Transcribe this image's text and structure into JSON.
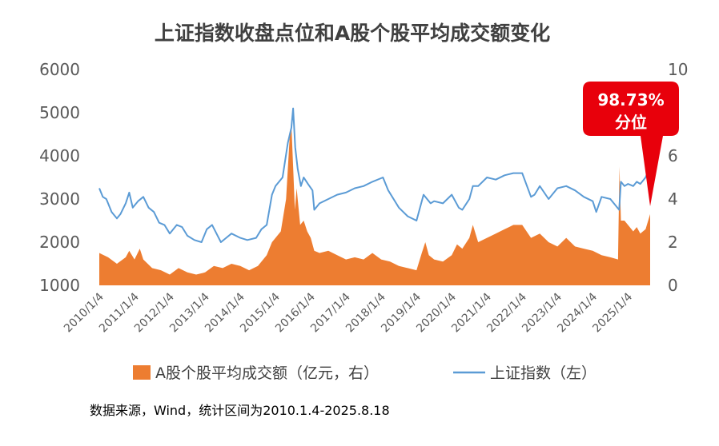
{
  "chart_data": {
    "type": "line",
    "title": "上证指数收盘点位和A股个股平均成交额变化",
    "source": "数据来源，Wind，统计区间为2010.1.4-2025.8.18",
    "left_axis": {
      "ticks": [
        "1000",
        "2000",
        "3000",
        "4000",
        "5000",
        "6000"
      ],
      "ylim": [
        1000,
        6000
      ]
    },
    "right_axis": {
      "ticks": [
        "0",
        "2",
        "4",
        "6",
        "8",
        "10"
      ],
      "ylim": [
        0,
        10
      ]
    },
    "x_ticks": [
      "2010/1/4",
      "2011/1/4",
      "2012/1/4",
      "2013/1/4",
      "2014/1/4",
      "2015/1/4",
      "2016/1/4",
      "2017/1/4",
      "2018/1/4",
      "2019/1/4",
      "2020/1/4",
      "2021/1/4",
      "2022/1/4",
      "2023/1/4",
      "2024/1/4",
      "2025/1/4"
    ],
    "x_range": [
      2010.0,
      2025.63
    ],
    "legend_position": "bottom",
    "series": [
      {
        "name": "A股个股平均成交额（亿元，右）",
        "type": "area",
        "axis": "right",
        "color": "#ED7D31",
        "x": [
          2010.0,
          2010.25,
          2010.5,
          2010.75,
          2010.85,
          2011.0,
          2011.15,
          2011.25,
          2011.5,
          2011.75,
          2012.0,
          2012.25,
          2012.5,
          2012.75,
          2013.0,
          2013.25,
          2013.5,
          2013.75,
          2014.0,
          2014.25,
          2014.5,
          2014.75,
          2014.9,
          2015.0,
          2015.15,
          2015.3,
          2015.4,
          2015.45,
          2015.5,
          2015.55,
          2015.6,
          2015.7,
          2015.8,
          2015.9,
          2016.0,
          2016.1,
          2016.25,
          2016.5,
          2016.75,
          2017.0,
          2017.25,
          2017.5,
          2017.75,
          2018.0,
          2018.25,
          2018.5,
          2018.75,
          2019.0,
          2019.15,
          2019.25,
          2019.35,
          2019.5,
          2019.75,
          2020.0,
          2020.15,
          2020.3,
          2020.5,
          2020.6,
          2020.75,
          2021.0,
          2021.25,
          2021.5,
          2021.75,
          2022.0,
          2022.25,
          2022.5,
          2022.75,
          2023.0,
          2023.25,
          2023.5,
          2023.75,
          2024.0,
          2024.25,
          2024.5,
          2024.72,
          2024.76,
          2024.8,
          2024.9,
          2025.0,
          2025.15,
          2025.25,
          2025.35,
          2025.5,
          2025.63
        ],
        "values": [
          1.5,
          1.3,
          1.0,
          1.3,
          1.6,
          1.2,
          1.7,
          1.2,
          0.8,
          0.7,
          0.5,
          0.8,
          0.6,
          0.5,
          0.6,
          0.9,
          0.8,
          1.0,
          0.9,
          0.7,
          0.9,
          1.4,
          2.0,
          2.2,
          2.5,
          4.0,
          6.8,
          7.5,
          5.5,
          3.5,
          4.5,
          2.8,
          3.0,
          2.5,
          2.2,
          1.6,
          1.5,
          1.6,
          1.4,
          1.2,
          1.3,
          1.2,
          1.5,
          1.2,
          1.1,
          0.9,
          0.8,
          0.7,
          1.5,
          2.0,
          1.4,
          1.2,
          1.1,
          1.4,
          1.9,
          1.7,
          2.2,
          2.8,
          2.0,
          2.2,
          2.4,
          2.6,
          2.8,
          2.8,
          2.2,
          2.4,
          2.0,
          1.8,
          2.2,
          1.8,
          1.7,
          1.6,
          1.4,
          1.3,
          1.2,
          5.5,
          3.0,
          3.0,
          2.8,
          2.5,
          2.7,
          2.4,
          2.6,
          3.3
        ]
      },
      {
        "name": "上证指数（左）",
        "type": "line",
        "axis": "left",
        "color": "#5B9BD5",
        "x": [
          2010.0,
          2010.1,
          2010.2,
          2010.35,
          2010.5,
          2010.6,
          2010.75,
          2010.85,
          2010.95,
          2011.1,
          2011.25,
          2011.4,
          2011.55,
          2011.7,
          2011.85,
          2012.0,
          2012.2,
          2012.35,
          2012.5,
          2012.7,
          2012.9,
          2013.05,
          2013.2,
          2013.45,
          2013.6,
          2013.75,
          2014.0,
          2014.2,
          2014.45,
          2014.6,
          2014.75,
          2014.9,
          2015.0,
          2015.2,
          2015.35,
          2015.45,
          2015.5,
          2015.56,
          2015.63,
          2015.72,
          2015.8,
          2015.92,
          2016.05,
          2016.1,
          2016.25,
          2016.5,
          2016.75,
          2017.0,
          2017.25,
          2017.5,
          2017.75,
          2018.05,
          2018.2,
          2018.5,
          2018.75,
          2019.0,
          2019.2,
          2019.4,
          2019.5,
          2019.75,
          2020.0,
          2020.2,
          2020.3,
          2020.5,
          2020.6,
          2020.75,
          2021.0,
          2021.25,
          2021.5,
          2021.75,
          2022.0,
          2022.25,
          2022.35,
          2022.5,
          2022.75,
          2023.0,
          2023.25,
          2023.5,
          2023.75,
          2024.0,
          2024.1,
          2024.25,
          2024.5,
          2024.65,
          2024.75,
          2024.8,
          2024.9,
          2025.0,
          2025.15,
          2025.25,
          2025.35,
          2025.5,
          2025.63
        ],
        "values": [
          3250,
          3050,
          3000,
          2700,
          2550,
          2650,
          2900,
          3150,
          2800,
          2950,
          3050,
          2800,
          2700,
          2450,
          2400,
          2200,
          2400,
          2350,
          2150,
          2050,
          2000,
          2300,
          2400,
          2000,
          2100,
          2200,
          2100,
          2050,
          2100,
          2300,
          2400,
          3100,
          3300,
          3500,
          4300,
          4650,
          5100,
          4200,
          3700,
          3300,
          3500,
          3350,
          3200,
          2750,
          2900,
          3000,
          3100,
          3150,
          3250,
          3300,
          3400,
          3500,
          3200,
          2800,
          2600,
          2500,
          3100,
          2900,
          2950,
          2900,
          3100,
          2800,
          2750,
          3000,
          3300,
          3300,
          3500,
          3450,
          3550,
          3600,
          3600,
          3050,
          3100,
          3300,
          3000,
          3250,
          3300,
          3200,
          3050,
          2950,
          2700,
          3050,
          3000,
          2850,
          2750,
          3400,
          3300,
          3350,
          3300,
          3400,
          3350,
          3500,
          3750
        ]
      }
    ],
    "callout": {
      "line1": "98.73%",
      "line2": "分位",
      "color": "#E8000B"
    }
  }
}
